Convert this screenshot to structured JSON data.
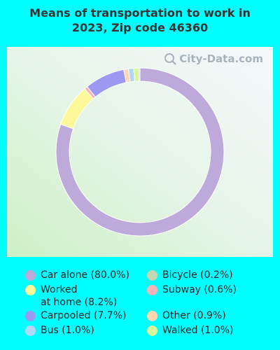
{
  "title_lines": [
    "Means of transportation to work in",
    "2023, Zip code 46360"
  ],
  "watermark": "City-Data.com",
  "chart_data": {
    "type": "pie",
    "title": "Means of transportation to work in 2023, Zip code 46360",
    "donut": true,
    "slices": [
      {
        "label": "Car alone (80.0%)",
        "value": 80.0,
        "color": "#bda9da"
      },
      {
        "label": "Worked at home (8.2%)",
        "value": 8.2,
        "color": "#fdf99a"
      },
      {
        "label": "Subway (0.6%)",
        "value": 0.6,
        "color": "#f7b3b5"
      },
      {
        "label": "Carpooled (7.7%)",
        "value": 7.7,
        "color": "#9b9af0"
      },
      {
        "label": "Other (0.9%)",
        "value": 0.9,
        "color": "#fdd6b2"
      },
      {
        "label": "Bus (1.0%)",
        "value": 1.0,
        "color": "#b3d8f7"
      },
      {
        "label": "Walked (1.0%)",
        "value": 1.0,
        "color": "#d5f99a"
      },
      {
        "label": "Bicycle (0.2%)",
        "value": 0.2,
        "color": "#c4d7b2"
      }
    ]
  },
  "legend": [
    {
      "lines": [
        "Car alone (80.0%)"
      ],
      "color": "#bda9da"
    },
    {
      "lines": [
        "Worked",
        "at home (8.2%)"
      ],
      "color": "#fdf99a"
    },
    {
      "lines": [
        "Carpooled (7.7%)"
      ],
      "color": "#9b9af0"
    },
    {
      "lines": [
        "Bus (1.0%)"
      ],
      "color": "#b3d8f7"
    },
    {
      "lines": [
        "Bicycle (0.2%)"
      ],
      "color": "#c4d7b2"
    },
    {
      "lines": [
        "Subway (0.6%)"
      ],
      "color": "#f7b3b5"
    },
    {
      "lines": [
        "Other (0.9%)"
      ],
      "color": "#fdd6b2"
    },
    {
      "lines": [
        "Walked (1.0%)"
      ],
      "color": "#d5f99a"
    }
  ]
}
